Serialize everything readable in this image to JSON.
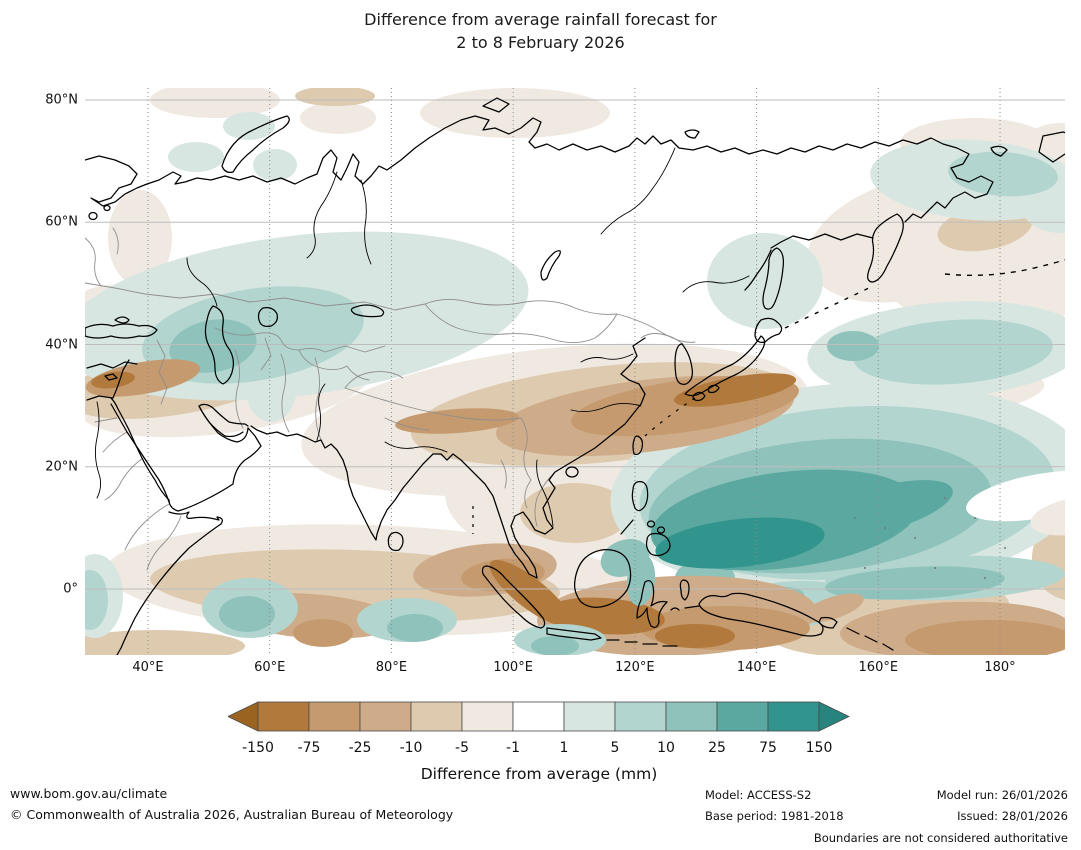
{
  "title": {
    "line1": "Difference from average rainfall forecast for",
    "line2": "2 to 8 February 2026"
  },
  "map": {
    "lat_ticks": [
      {
        "label": "80°N",
        "deg": 80
      },
      {
        "label": "60°N",
        "deg": 60
      },
      {
        "label": "40°N",
        "deg": 40
      },
      {
        "label": "20°N",
        "deg": 20
      },
      {
        "label": "0°",
        "deg": 0
      }
    ],
    "lon_ticks": [
      {
        "label": "40°E",
        "deg": 40
      },
      {
        "label": "60°E",
        "deg": 60
      },
      {
        "label": "80°E",
        "deg": 80
      },
      {
        "label": "100°E",
        "deg": 100
      },
      {
        "label": "120°E",
        "deg": 120
      },
      {
        "label": "140°E",
        "deg": 140
      },
      {
        "label": "160°E",
        "deg": 160
      },
      {
        "label": "180°",
        "deg": 180
      }
    ]
  },
  "colorbar": {
    "ticks": [
      "-150",
      "-75",
      "-25",
      "-10",
      "-5",
      "-1",
      "1",
      "5",
      "10",
      "25",
      "75",
      "150"
    ],
    "colors": [
      "#9a6420",
      "#b1793b",
      "#c59a6e",
      "#cfac89",
      "#decaaf",
      "#f0e9e1",
      "#ffffff",
      "#d8e6e1",
      "#b3d5cf",
      "#8ec2bb",
      "#5aa8a0",
      "#31958d",
      "#27847e"
    ],
    "caption": "Difference from average (mm)"
  },
  "palette": {
    "neg4": "#b1793b",
    "neg3": "#c59a6e",
    "neg2": "#cfac89",
    "neg1": "#decaaf",
    "neg0": "#f0e9e1",
    "zero": "#ffffff",
    "pos0": "#d8e6e1",
    "pos1": "#b3d5cf",
    "pos2": "#8ec2bb",
    "pos3": "#5aa8a0",
    "pos4": "#31958d"
  },
  "footer": {
    "url": "www.bom.gov.au/climate",
    "copyright": "© Commonwealth of Australia 2026, Australian Bureau of Meteorology",
    "model": "Model: ACCESS-S2",
    "base_period": "Base period: 1981-2018",
    "model_run": "Model run: 26/01/2026",
    "issued": "Issued: 28/01/2026",
    "disclaimer": "Boundaries are not considered authoritative"
  }
}
